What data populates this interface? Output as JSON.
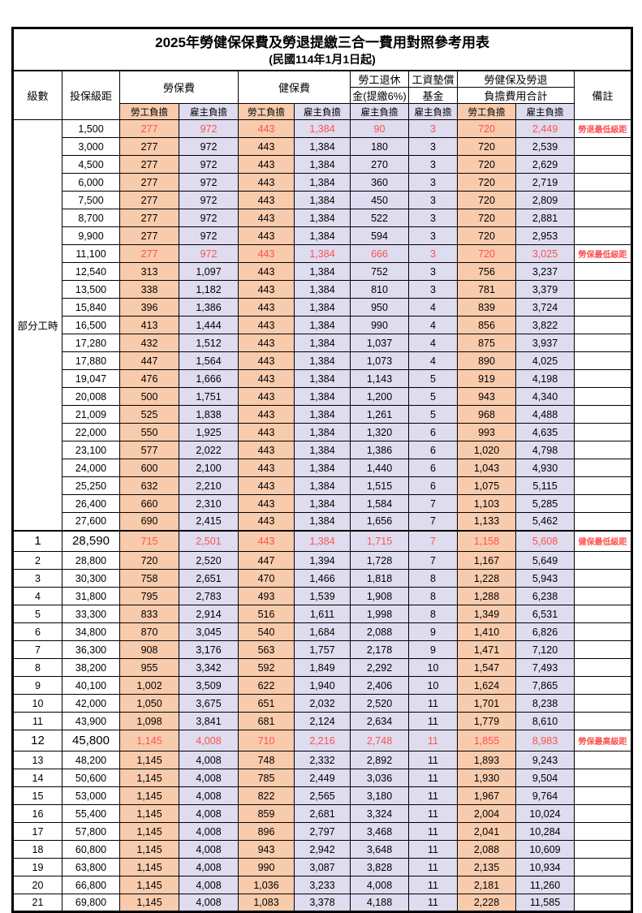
{
  "title": "2025年勞健保保費及勞退提繳三合一費用對照參考用表",
  "subtitle": "(民國114年1月1日起)",
  "header": {
    "level": "級數",
    "bracket": "投保級距",
    "labor_ins": "勞保費",
    "health_ins": "健保費",
    "pension_line1": "勞工退休",
    "pension_line2": "金(提繳6%)",
    "wage_fund_line1": "工資墊償",
    "wage_fund_line2": "基金",
    "total_line1": "勞健保及勞退",
    "total_line2": "負擔費用合計",
    "note": "備註",
    "employee": "勞工負擔",
    "employer": "雇主負擔"
  },
  "group_label": "部分工時",
  "colors": {
    "employee_fill": "#F8CBAD",
    "employer_fill": "#DEDCEE",
    "highlight_text": "#FF5050",
    "border": "#000000"
  },
  "rows": [
    {
      "level": "",
      "bracket": "1,500",
      "labor_emp": "277",
      "labor_er": "972",
      "health_emp": "443",
      "health_er": "1,384",
      "pension_er": "90",
      "wage_fund_er": "3",
      "total_emp": "720",
      "total_er": "2,449",
      "note": "勞退最低級距",
      "red": true,
      "big": false,
      "section": false
    },
    {
      "level": "",
      "bracket": "3,000",
      "labor_emp": "277",
      "labor_er": "972",
      "health_emp": "443",
      "health_er": "1,384",
      "pension_er": "180",
      "wage_fund_er": "3",
      "total_emp": "720",
      "total_er": "2,539",
      "note": "",
      "red": false,
      "big": false,
      "section": false
    },
    {
      "level": "",
      "bracket": "4,500",
      "labor_emp": "277",
      "labor_er": "972",
      "health_emp": "443",
      "health_er": "1,384",
      "pension_er": "270",
      "wage_fund_er": "3",
      "total_emp": "720",
      "total_er": "2,629",
      "note": "",
      "red": false,
      "big": false,
      "section": false
    },
    {
      "level": "",
      "bracket": "6,000",
      "labor_emp": "277",
      "labor_er": "972",
      "health_emp": "443",
      "health_er": "1,384",
      "pension_er": "360",
      "wage_fund_er": "3",
      "total_emp": "720",
      "total_er": "2,719",
      "note": "",
      "red": false,
      "big": false,
      "section": false
    },
    {
      "level": "",
      "bracket": "7,500",
      "labor_emp": "277",
      "labor_er": "972",
      "health_emp": "443",
      "health_er": "1,384",
      "pension_er": "450",
      "wage_fund_er": "3",
      "total_emp": "720",
      "total_er": "2,809",
      "note": "",
      "red": false,
      "big": false,
      "section": false
    },
    {
      "level": "",
      "bracket": "8,700",
      "labor_emp": "277",
      "labor_er": "972",
      "health_emp": "443",
      "health_er": "1,384",
      "pension_er": "522",
      "wage_fund_er": "3",
      "total_emp": "720",
      "total_er": "2,881",
      "note": "",
      "red": false,
      "big": false,
      "section": false
    },
    {
      "level": "",
      "bracket": "9,900",
      "labor_emp": "277",
      "labor_er": "972",
      "health_emp": "443",
      "health_er": "1,384",
      "pension_er": "594",
      "wage_fund_er": "3",
      "total_emp": "720",
      "total_er": "2,953",
      "note": "",
      "red": false,
      "big": false,
      "section": false
    },
    {
      "level": "",
      "bracket": "11,100",
      "labor_emp": "277",
      "labor_er": "972",
      "health_emp": "443",
      "health_er": "1,384",
      "pension_er": "666",
      "wage_fund_er": "3",
      "total_emp": "720",
      "total_er": "3,025",
      "note": "勞保最低級距",
      "red": true,
      "big": false,
      "section": false
    },
    {
      "level": "",
      "bracket": "12,540",
      "labor_emp": "313",
      "labor_er": "1,097",
      "health_emp": "443",
      "health_er": "1,384",
      "pension_er": "752",
      "wage_fund_er": "3",
      "total_emp": "756",
      "total_er": "3,237",
      "note": "",
      "red": false,
      "big": false,
      "section": false
    },
    {
      "level": "",
      "bracket": "13,500",
      "labor_emp": "338",
      "labor_er": "1,182",
      "health_emp": "443",
      "health_er": "1,384",
      "pension_er": "810",
      "wage_fund_er": "3",
      "total_emp": "781",
      "total_er": "3,379",
      "note": "",
      "red": false,
      "big": false,
      "section": false
    },
    {
      "level": "",
      "bracket": "15,840",
      "labor_emp": "396",
      "labor_er": "1,386",
      "health_emp": "443",
      "health_er": "1,384",
      "pension_er": "950",
      "wage_fund_er": "4",
      "total_emp": "839",
      "total_er": "3,724",
      "note": "",
      "red": false,
      "big": false,
      "section": false
    },
    {
      "level": "",
      "bracket": "16,500",
      "labor_emp": "413",
      "labor_er": "1,444",
      "health_emp": "443",
      "health_er": "1,384",
      "pension_er": "990",
      "wage_fund_er": "4",
      "total_emp": "856",
      "total_er": "3,822",
      "note": "",
      "red": false,
      "big": false,
      "section": false
    },
    {
      "level": "",
      "bracket": "17,280",
      "labor_emp": "432",
      "labor_er": "1,512",
      "health_emp": "443",
      "health_er": "1,384",
      "pension_er": "1,037",
      "wage_fund_er": "4",
      "total_emp": "875",
      "total_er": "3,937",
      "note": "",
      "red": false,
      "big": false,
      "section": false
    },
    {
      "level": "",
      "bracket": "17,880",
      "labor_emp": "447",
      "labor_er": "1,564",
      "health_emp": "443",
      "health_er": "1,384",
      "pension_er": "1,073",
      "wage_fund_er": "4",
      "total_emp": "890",
      "total_er": "4,025",
      "note": "",
      "red": false,
      "big": false,
      "section": false
    },
    {
      "level": "",
      "bracket": "19,047",
      "labor_emp": "476",
      "labor_er": "1,666",
      "health_emp": "443",
      "health_er": "1,384",
      "pension_er": "1,143",
      "wage_fund_er": "5",
      "total_emp": "919",
      "total_er": "4,198",
      "note": "",
      "red": false,
      "big": false,
      "section": false
    },
    {
      "level": "",
      "bracket": "20,008",
      "labor_emp": "500",
      "labor_er": "1,751",
      "health_emp": "443",
      "health_er": "1,384",
      "pension_er": "1,200",
      "wage_fund_er": "5",
      "total_emp": "943",
      "total_er": "4,340",
      "note": "",
      "red": false,
      "big": false,
      "section": false
    },
    {
      "level": "",
      "bracket": "21,009",
      "labor_emp": "525",
      "labor_er": "1,838",
      "health_emp": "443",
      "health_er": "1,384",
      "pension_er": "1,261",
      "wage_fund_er": "5",
      "total_emp": "968",
      "total_er": "4,488",
      "note": "",
      "red": false,
      "big": false,
      "section": false
    },
    {
      "level": "",
      "bracket": "22,000",
      "labor_emp": "550",
      "labor_er": "1,925",
      "health_emp": "443",
      "health_er": "1,384",
      "pension_er": "1,320",
      "wage_fund_er": "6",
      "total_emp": "993",
      "total_er": "4,635",
      "note": "",
      "red": false,
      "big": false,
      "section": false
    },
    {
      "level": "",
      "bracket": "23,100",
      "labor_emp": "577",
      "labor_er": "2,022",
      "health_emp": "443",
      "health_er": "1,384",
      "pension_er": "1,386",
      "wage_fund_er": "6",
      "total_emp": "1,020",
      "total_er": "4,798",
      "note": "",
      "red": false,
      "big": false,
      "section": false
    },
    {
      "level": "",
      "bracket": "24,000",
      "labor_emp": "600",
      "labor_er": "2,100",
      "health_emp": "443",
      "health_er": "1,384",
      "pension_er": "1,440",
      "wage_fund_er": "6",
      "total_emp": "1,043",
      "total_er": "4,930",
      "note": "",
      "red": false,
      "big": false,
      "section": false
    },
    {
      "level": "",
      "bracket": "25,250",
      "labor_emp": "632",
      "labor_er": "2,210",
      "health_emp": "443",
      "health_er": "1,384",
      "pension_er": "1,515",
      "wage_fund_er": "6",
      "total_emp": "1,075",
      "total_er": "5,115",
      "note": "",
      "red": false,
      "big": false,
      "section": false
    },
    {
      "level": "",
      "bracket": "26,400",
      "labor_emp": "660",
      "labor_er": "2,310",
      "health_emp": "443",
      "health_er": "1,384",
      "pension_er": "1,584",
      "wage_fund_er": "7",
      "total_emp": "1,103",
      "total_er": "5,285",
      "note": "",
      "red": false,
      "big": false,
      "section": false
    },
    {
      "level": "",
      "bracket": "27,600",
      "labor_emp": "690",
      "labor_er": "2,415",
      "health_emp": "443",
      "health_er": "1,384",
      "pension_er": "1,656",
      "wage_fund_er": "7",
      "total_emp": "1,133",
      "total_er": "5,462",
      "note": "",
      "red": false,
      "big": false,
      "section": false
    },
    {
      "level": "1",
      "bracket": "28,590",
      "labor_emp": "715",
      "labor_er": "2,501",
      "health_emp": "443",
      "health_er": "1,384",
      "pension_er": "1,715",
      "wage_fund_er": "7",
      "total_emp": "1,158",
      "total_er": "5,608",
      "note": "健保最低級距",
      "red": true,
      "big": true,
      "section": true
    },
    {
      "level": "2",
      "bracket": "28,800",
      "labor_emp": "720",
      "labor_er": "2,520",
      "health_emp": "447",
      "health_er": "1,394",
      "pension_er": "1,728",
      "wage_fund_er": "7",
      "total_emp": "1,167",
      "total_er": "5,649",
      "note": "",
      "red": false,
      "big": false,
      "section": false
    },
    {
      "level": "3",
      "bracket": "30,300",
      "labor_emp": "758",
      "labor_er": "2,651",
      "health_emp": "470",
      "health_er": "1,466",
      "pension_er": "1,818",
      "wage_fund_er": "8",
      "total_emp": "1,228",
      "total_er": "5,943",
      "note": "",
      "red": false,
      "big": false,
      "section": false
    },
    {
      "level": "4",
      "bracket": "31,800",
      "labor_emp": "795",
      "labor_er": "2,783",
      "health_emp": "493",
      "health_er": "1,539",
      "pension_er": "1,908",
      "wage_fund_er": "8",
      "total_emp": "1,288",
      "total_er": "6,238",
      "note": "",
      "red": false,
      "big": false,
      "section": false
    },
    {
      "level": "5",
      "bracket": "33,300",
      "labor_emp": "833",
      "labor_er": "2,914",
      "health_emp": "516",
      "health_er": "1,611",
      "pension_er": "1,998",
      "wage_fund_er": "8",
      "total_emp": "1,349",
      "total_er": "6,531",
      "note": "",
      "red": false,
      "big": false,
      "section": false
    },
    {
      "level": "6",
      "bracket": "34,800",
      "labor_emp": "870",
      "labor_er": "3,045",
      "health_emp": "540",
      "health_er": "1,684",
      "pension_er": "2,088",
      "wage_fund_er": "9",
      "total_emp": "1,410",
      "total_er": "6,826",
      "note": "",
      "red": false,
      "big": false,
      "section": false
    },
    {
      "level": "7",
      "bracket": "36,300",
      "labor_emp": "908",
      "labor_er": "3,176",
      "health_emp": "563",
      "health_er": "1,757",
      "pension_er": "2,178",
      "wage_fund_er": "9",
      "total_emp": "1,471",
      "total_er": "7,120",
      "note": "",
      "red": false,
      "big": false,
      "section": false
    },
    {
      "level": "8",
      "bracket": "38,200",
      "labor_emp": "955",
      "labor_er": "3,342",
      "health_emp": "592",
      "health_er": "1,849",
      "pension_er": "2,292",
      "wage_fund_er": "10",
      "total_emp": "1,547",
      "total_er": "7,493",
      "note": "",
      "red": false,
      "big": false,
      "section": false
    },
    {
      "level": "9",
      "bracket": "40,100",
      "labor_emp": "1,002",
      "labor_er": "3,509",
      "health_emp": "622",
      "health_er": "1,940",
      "pension_er": "2,406",
      "wage_fund_er": "10",
      "total_emp": "1,624",
      "total_er": "7,865",
      "note": "",
      "red": false,
      "big": false,
      "section": false
    },
    {
      "level": "10",
      "bracket": "42,000",
      "labor_emp": "1,050",
      "labor_er": "3,675",
      "health_emp": "651",
      "health_er": "2,032",
      "pension_er": "2,520",
      "wage_fund_er": "11",
      "total_emp": "1,701",
      "total_er": "8,238",
      "note": "",
      "red": false,
      "big": false,
      "section": false
    },
    {
      "level": "11",
      "bracket": "43,900",
      "labor_emp": "1,098",
      "labor_er": "3,841",
      "health_emp": "681",
      "health_er": "2,124",
      "pension_er": "2,634",
      "wage_fund_er": "11",
      "total_emp": "1,779",
      "total_er": "8,610",
      "note": "",
      "red": false,
      "big": false,
      "section": false
    },
    {
      "level": "12",
      "bracket": "45,800",
      "labor_emp": "1,145",
      "labor_er": "4,008",
      "health_emp": "710",
      "health_er": "2,216",
      "pension_er": "2,748",
      "wage_fund_er": "11",
      "total_emp": "1,855",
      "total_er": "8,983",
      "note": "勞保最高級距",
      "red": true,
      "big": true,
      "section": false
    },
    {
      "level": "13",
      "bracket": "48,200",
      "labor_emp": "1,145",
      "labor_er": "4,008",
      "health_emp": "748",
      "health_er": "2,332",
      "pension_er": "2,892",
      "wage_fund_er": "11",
      "total_emp": "1,893",
      "total_er": "9,243",
      "note": "",
      "red": false,
      "big": false,
      "section": false
    },
    {
      "level": "14",
      "bracket": "50,600",
      "labor_emp": "1,145",
      "labor_er": "4,008",
      "health_emp": "785",
      "health_er": "2,449",
      "pension_er": "3,036",
      "wage_fund_er": "11",
      "total_emp": "1,930",
      "total_er": "9,504",
      "note": "",
      "red": false,
      "big": false,
      "section": false
    },
    {
      "level": "15",
      "bracket": "53,000",
      "labor_emp": "1,145",
      "labor_er": "4,008",
      "health_emp": "822",
      "health_er": "2,565",
      "pension_er": "3,180",
      "wage_fund_er": "11",
      "total_emp": "1,967",
      "total_er": "9,764",
      "note": "",
      "red": false,
      "big": false,
      "section": false
    },
    {
      "level": "16",
      "bracket": "55,400",
      "labor_emp": "1,145",
      "labor_er": "4,008",
      "health_emp": "859",
      "health_er": "2,681",
      "pension_er": "3,324",
      "wage_fund_er": "11",
      "total_emp": "2,004",
      "total_er": "10,024",
      "note": "",
      "red": false,
      "big": false,
      "section": false
    },
    {
      "level": "17",
      "bracket": "57,800",
      "labor_emp": "1,145",
      "labor_er": "4,008",
      "health_emp": "896",
      "health_er": "2,797",
      "pension_er": "3,468",
      "wage_fund_er": "11",
      "total_emp": "2,041",
      "total_er": "10,284",
      "note": "",
      "red": false,
      "big": false,
      "section": false
    },
    {
      "level": "18",
      "bracket": "60,800",
      "labor_emp": "1,145",
      "labor_er": "4,008",
      "health_emp": "943",
      "health_er": "2,942",
      "pension_er": "3,648",
      "wage_fund_er": "11",
      "total_emp": "2,088",
      "total_er": "10,609",
      "note": "",
      "red": false,
      "big": false,
      "section": false
    },
    {
      "level": "19",
      "bracket": "63,800",
      "labor_emp": "1,145",
      "labor_er": "4,008",
      "health_emp": "990",
      "health_er": "3,087",
      "pension_er": "3,828",
      "wage_fund_er": "11",
      "total_emp": "2,135",
      "total_er": "10,934",
      "note": "",
      "red": false,
      "big": false,
      "section": false
    },
    {
      "level": "20",
      "bracket": "66,800",
      "labor_emp": "1,145",
      "labor_er": "4,008",
      "health_emp": "1,036",
      "health_er": "3,233",
      "pension_er": "4,008",
      "wage_fund_er": "11",
      "total_emp": "2,181",
      "total_er": "11,260",
      "note": "",
      "red": false,
      "big": false,
      "section": false
    },
    {
      "level": "21",
      "bracket": "69,800",
      "labor_emp": "1,145",
      "labor_er": "4,008",
      "health_emp": "1,083",
      "health_er": "3,378",
      "pension_er": "4,188",
      "wage_fund_er": "11",
      "total_emp": "2,228",
      "total_er": "11,585",
      "note": "",
      "red": false,
      "big": false,
      "section": false
    }
  ]
}
